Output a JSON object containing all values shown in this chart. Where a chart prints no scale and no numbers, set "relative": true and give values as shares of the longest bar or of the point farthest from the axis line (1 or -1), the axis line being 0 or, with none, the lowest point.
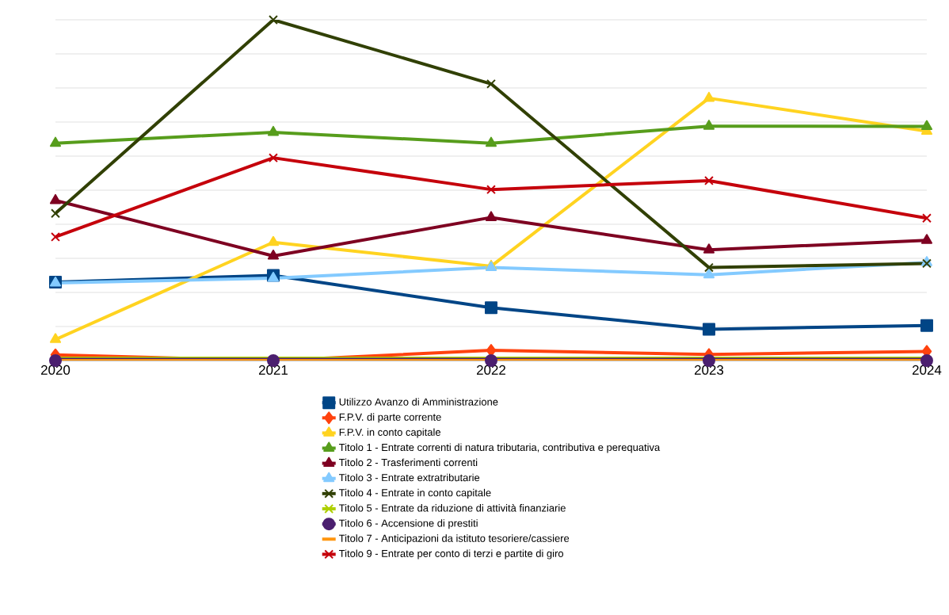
{
  "chart_data": {
    "type": "line",
    "relative": true,
    "x": [
      2020,
      2021,
      2022,
      2023,
      2024
    ],
    "xlim": [
      2020,
      2024
    ],
    "xticks": [
      2020,
      2021,
      2022,
      2023,
      2024
    ],
    "grid": "y",
    "legend": "bottom",
    "tick_labels": "x",
    "series": [
      {
        "name": "Utilizzo Avanzo di Amministrazione",
        "color": "#004586",
        "marker": "square",
        "values": [
          0.23,
          0.25,
          0.155,
          0.092,
          0.103
        ]
      },
      {
        "name": "F.P.V. di parte corrente",
        "color": "#ff420e",
        "marker": "diamond",
        "values": [
          0.017,
          0,
          0.03,
          0.018,
          0.027
        ]
      },
      {
        "name": "F.P.V. in conto capitale",
        "color": "#ffd320",
        "marker": "triangle",
        "values": [
          0.062,
          0.347,
          0.277,
          0.77,
          0.673
        ]
      },
      {
        "name": "Titolo 1 - Entrate correnti di natura tributaria, contributiva e perequativa",
        "color": "#579d1c",
        "marker": "triangle",
        "values": [
          0.638,
          0.67,
          0.638,
          0.688,
          0.687
        ]
      },
      {
        "name": "Titolo 2 - Trasferimenti correnti",
        "color": "#7e0021",
        "marker": "triangle",
        "values": [
          0.47,
          0.307,
          0.42,
          0.325,
          0.353
        ]
      },
      {
        "name": "Titolo 3 - Entrate extratributarie",
        "color": "#83caff",
        "marker": "triangle",
        "values": [
          0.228,
          0.242,
          0.273,
          0.252,
          0.288
        ]
      },
      {
        "name": "Titolo 4 - Entrate in conto capitale",
        "color": "#314004",
        "marker": "cross",
        "values": [
          0.432,
          1,
          0.812,
          0.273,
          0.285
        ]
      },
      {
        "name": "Titolo 5 - Entrate da riduzione di attività finanziarie",
        "color": "#aecf00",
        "marker": "cross",
        "values": [
          0,
          0,
          0,
          0,
          0
        ]
      },
      {
        "name": "Titolo 6 - Accensione di prestiti",
        "color": "#4b1f6f",
        "marker": "circle",
        "values": [
          0,
          0,
          0,
          0,
          0
        ]
      },
      {
        "name": "Titolo 7 - Anticipazioni da istituto tesoriere/cassiere",
        "color": "#ff950e",
        "marker": "none",
        "values": [
          0,
          0,
          0,
          0,
          0
        ]
      },
      {
        "name": "Titolo 9 - Entrate per conto di terzi e partite di giro",
        "color": "#c5000b",
        "marker": "cross",
        "values": [
          0.363,
          0.595,
          0.502,
          0.528,
          0.418
        ]
      }
    ]
  }
}
